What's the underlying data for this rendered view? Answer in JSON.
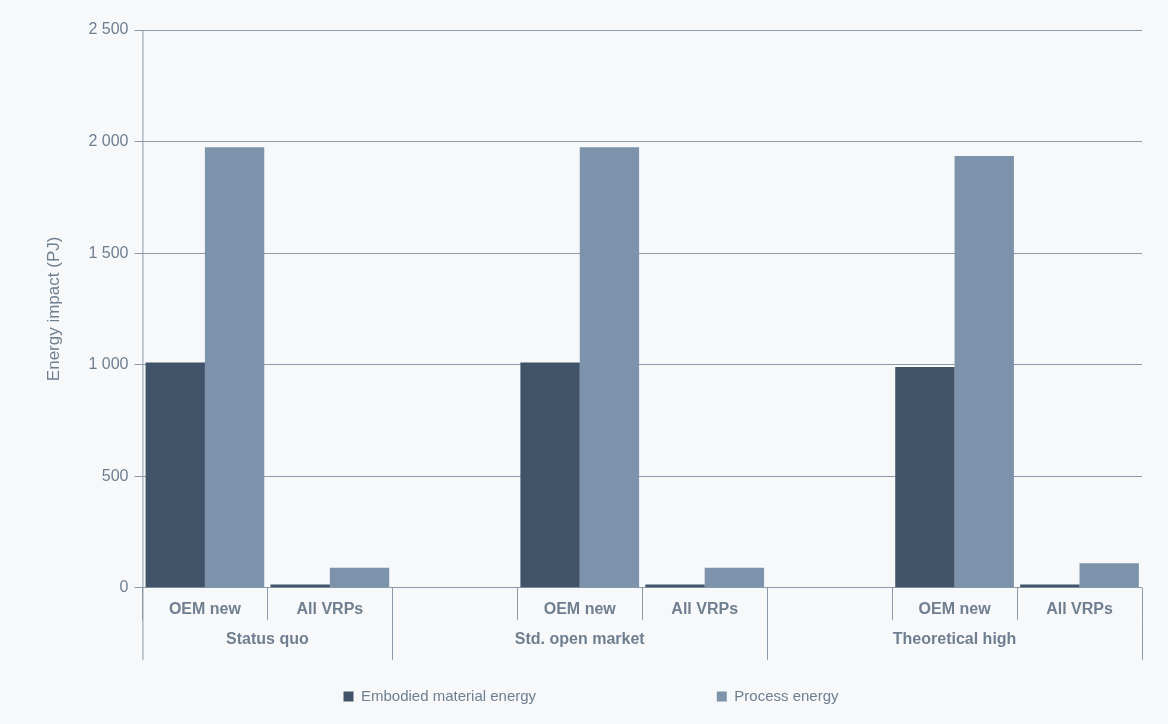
{
  "chart_data": {
    "type": "bar",
    "ylabel": "Energy impact (PJ)",
    "categories": [
      "OEM new",
      "All VRPs",
      null,
      "OEM new",
      "All VRPs",
      null,
      "OEM new",
      "All VRPs"
    ],
    "series": [
      {
        "name": "Embodied material energy",
        "color": "#415369",
        "values": [
          1010,
          15,
          null,
          1010,
          15,
          null,
          990,
          15
        ]
      },
      {
        "name": "Process energy",
        "color": "#7d93ab",
        "values": [
          1975,
          90,
          null,
          1975,
          90,
          null,
          1935,
          110
        ]
      }
    ],
    "annotations": [
      "Status quo",
      "Std. open market",
      "Theoretical high"
    ],
    "ylim": [
      0,
      2500
    ],
    "yticks": [
      0,
      {
        "value": 500,
        "label": "500"
      },
      {
        "value": 1000,
        "label": "1 000"
      },
      {
        "value": 1500,
        "label": "1 500"
      },
      {
        "value": 2000,
        "label": "2 000"
      },
      {
        "value": 2500,
        "label": "2 500"
      }
    ],
    "grid": "y",
    "legend": "bottom"
  }
}
